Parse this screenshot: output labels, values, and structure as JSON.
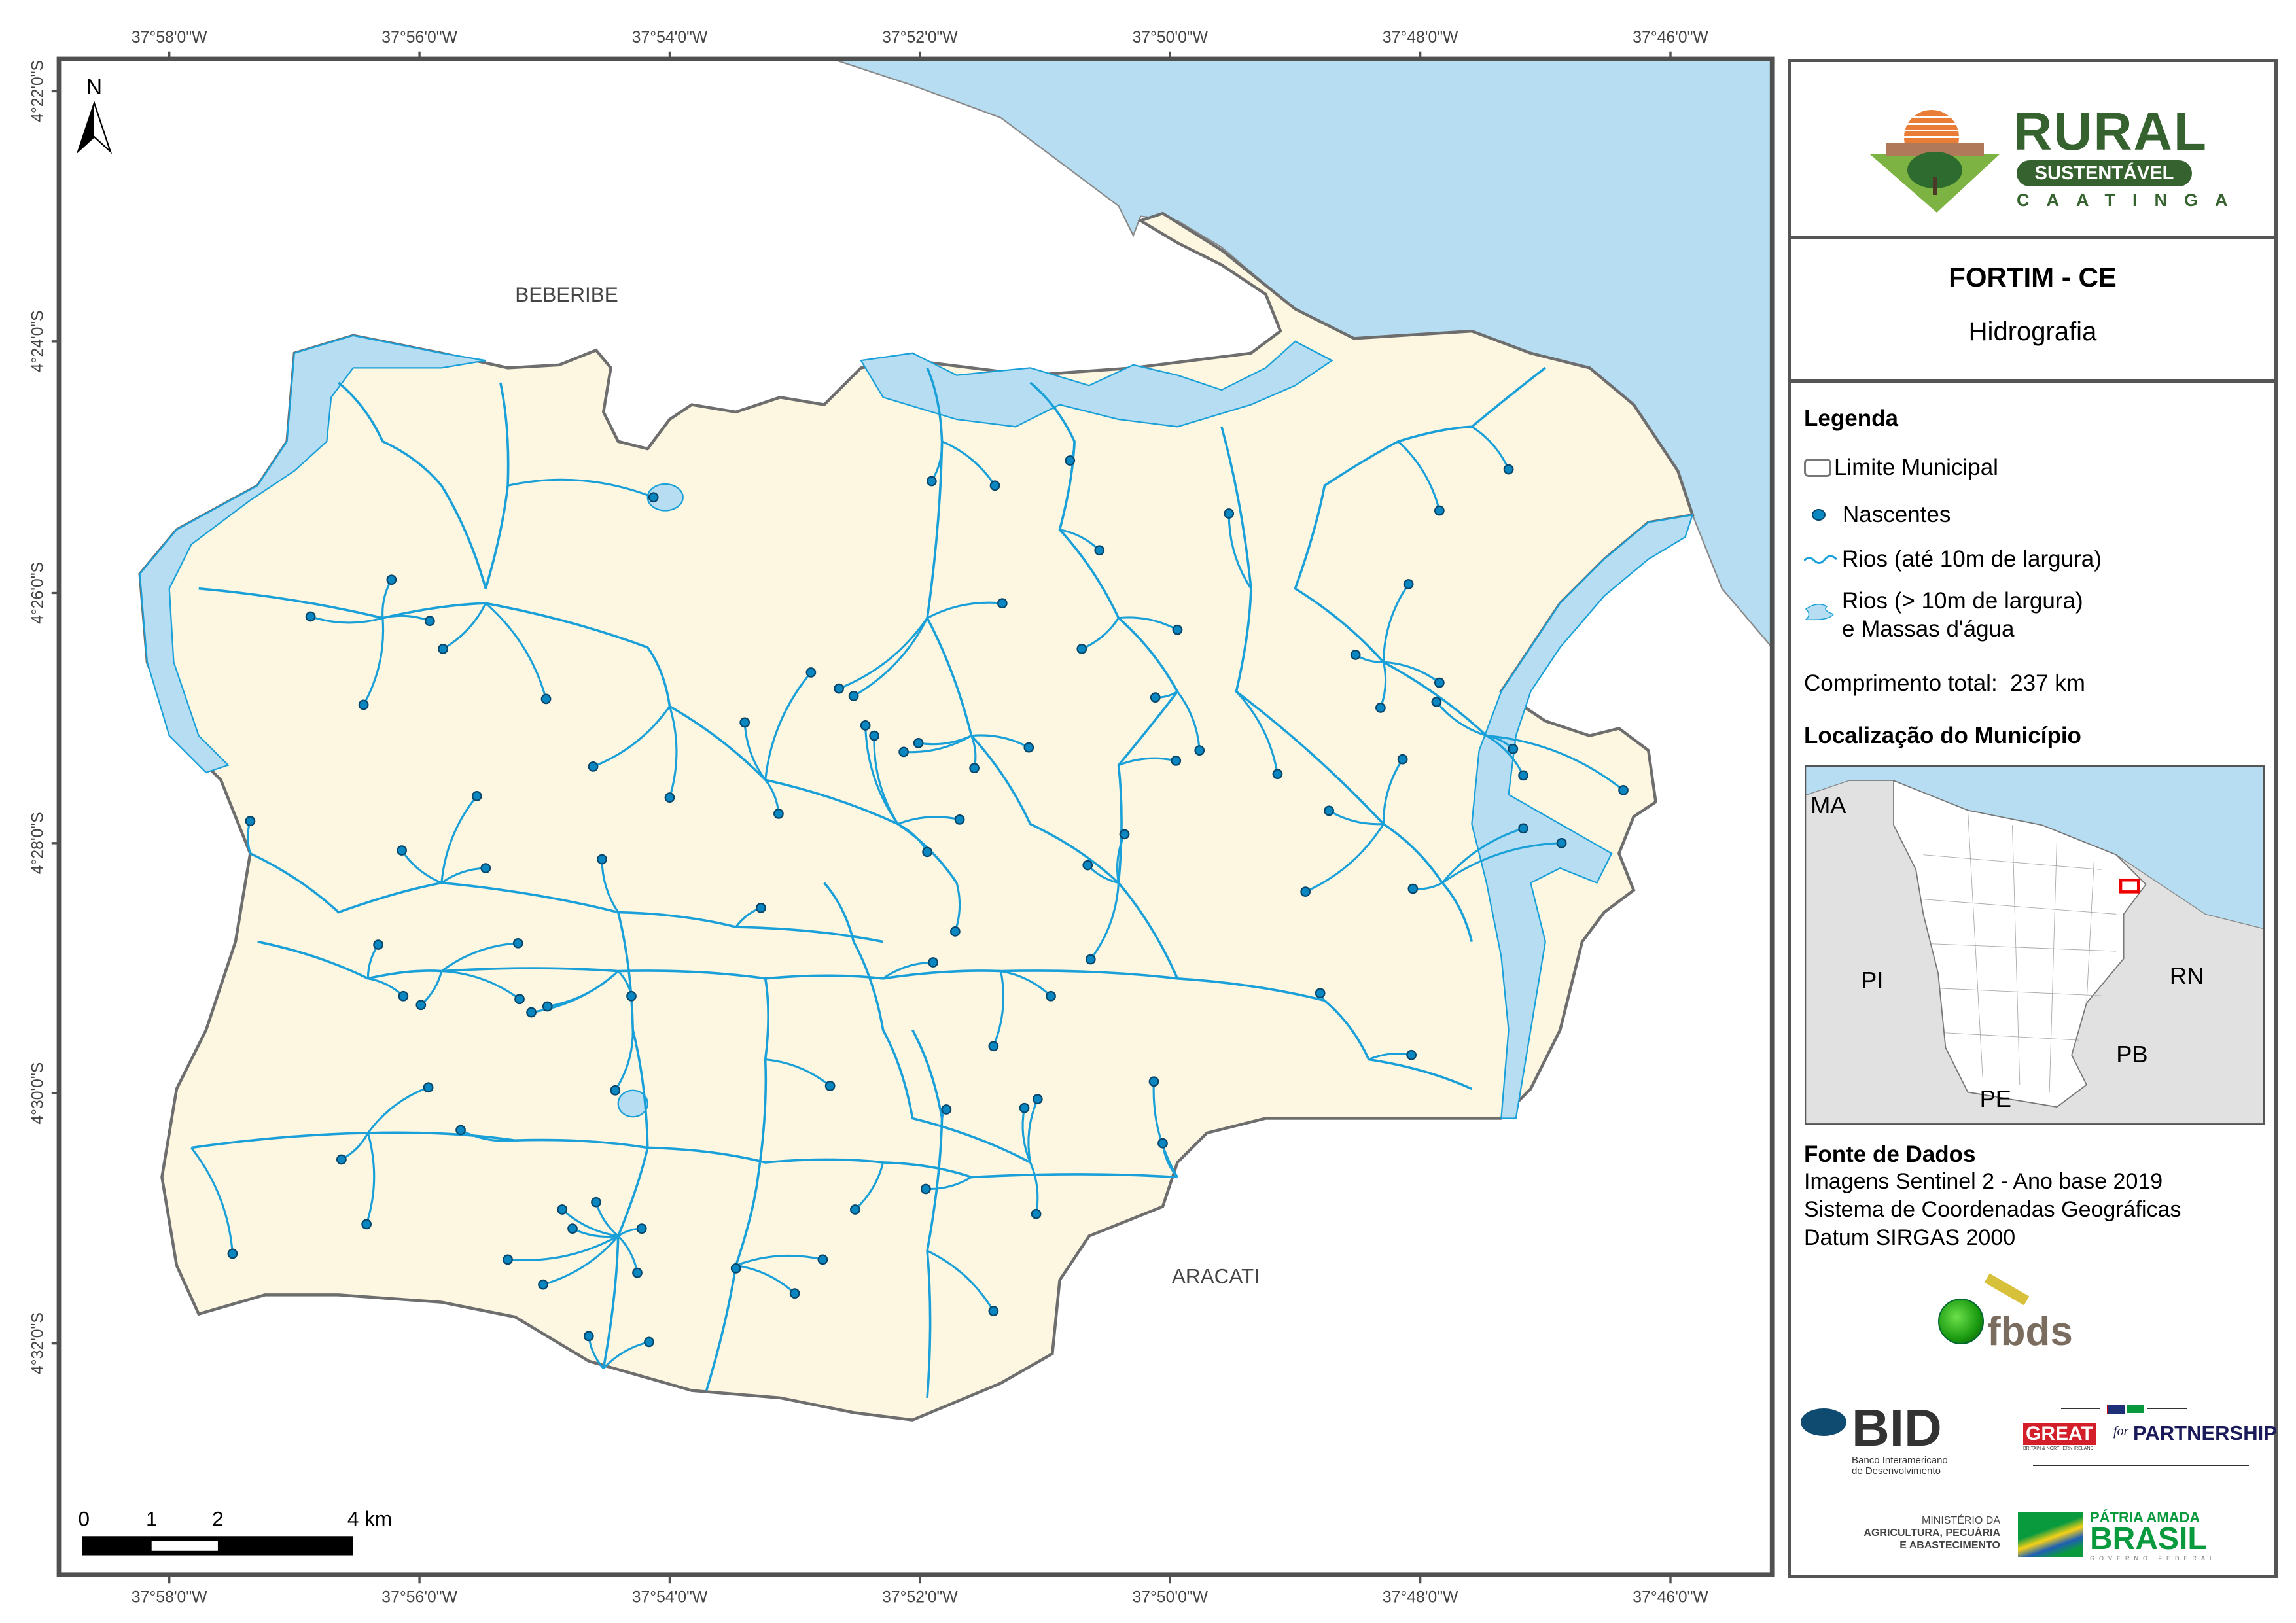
{
  "colors": {
    "land": "#fdf6e1",
    "water": "#b6ddf1",
    "river": "#1aa0d8",
    "spring": "#0a86c0",
    "boundary": "#6e6e6e",
    "frame": "#505050"
  },
  "map": {
    "north_label": "N",
    "top_ticks": [
      "37°58'0\"W",
      "37°56'0\"W",
      "37°54'0\"W",
      "37°52'0\"W",
      "37°50'0\"W",
      "37°48'0\"W",
      "37°46'0\"W"
    ],
    "bottom_ticks": [
      "37°58'0\"W",
      "37°56'0\"W",
      "37°54'0\"W",
      "37°52'0\"W",
      "37°50'0\"W",
      "37°48'0\"W",
      "37°46'0\"W"
    ],
    "left_ticks": [
      "4°22'0\"S",
      "4°24'0\"S",
      "4°26'0\"S",
      "4°28'0\"S",
      "4°30'0\"S",
      "4°32'0\"S"
    ],
    "places": {
      "beberibe": "BEBERIBE",
      "aracati": "ARACATI"
    },
    "scale_bar": {
      "labels": [
        "0",
        "1",
        "2",
        "4 km"
      ]
    }
  },
  "panel": {
    "logo": {
      "rural": "RURAL",
      "sustentavel": "SUSTENTÁVEL",
      "caatinga": "CAATINGA"
    },
    "title": "FORTIM - CE",
    "subtitle": "Hidrografia",
    "legend": {
      "heading": "Legenda",
      "items": [
        "Limite Municipal",
        "Nascentes",
        "Rios (até 10m de largura)",
        "Rios (> 10m de largura)",
        "e Massas d'água"
      ],
      "total_label": "Comprimento total:",
      "total_value": "237 km"
    },
    "location": {
      "heading": "Localização do Município",
      "states": [
        "MA",
        "PI",
        "RN",
        "PB",
        "PE"
      ]
    },
    "sources": {
      "heading": "Fonte de Dados",
      "lines": [
        "Imagens Sentinel 2 - Ano base 2019",
        "Sistema de Coordenadas Geográficas",
        "Datum SIRGAS 2000"
      ]
    },
    "logos": {
      "fbds": "fbds",
      "bid": "BID",
      "bid_sub1": "Banco Interamericano",
      "bid_sub2": "de Desenvolvimento",
      "great": "GREAT",
      "great_sub": "BRITAIN & NORTHERN IRELAND",
      "for": "for",
      "partnership": "PARTNERSHIP",
      "min1": "MINISTÉRIO DA",
      "min2": "AGRICULTURA, PECUÁRIA",
      "min3": "E ABASTECIMENTO",
      "patria": "PÁTRIA AMADA",
      "brasil": "BRASIL",
      "gov": "GOVERNO FEDERAL"
    }
  }
}
